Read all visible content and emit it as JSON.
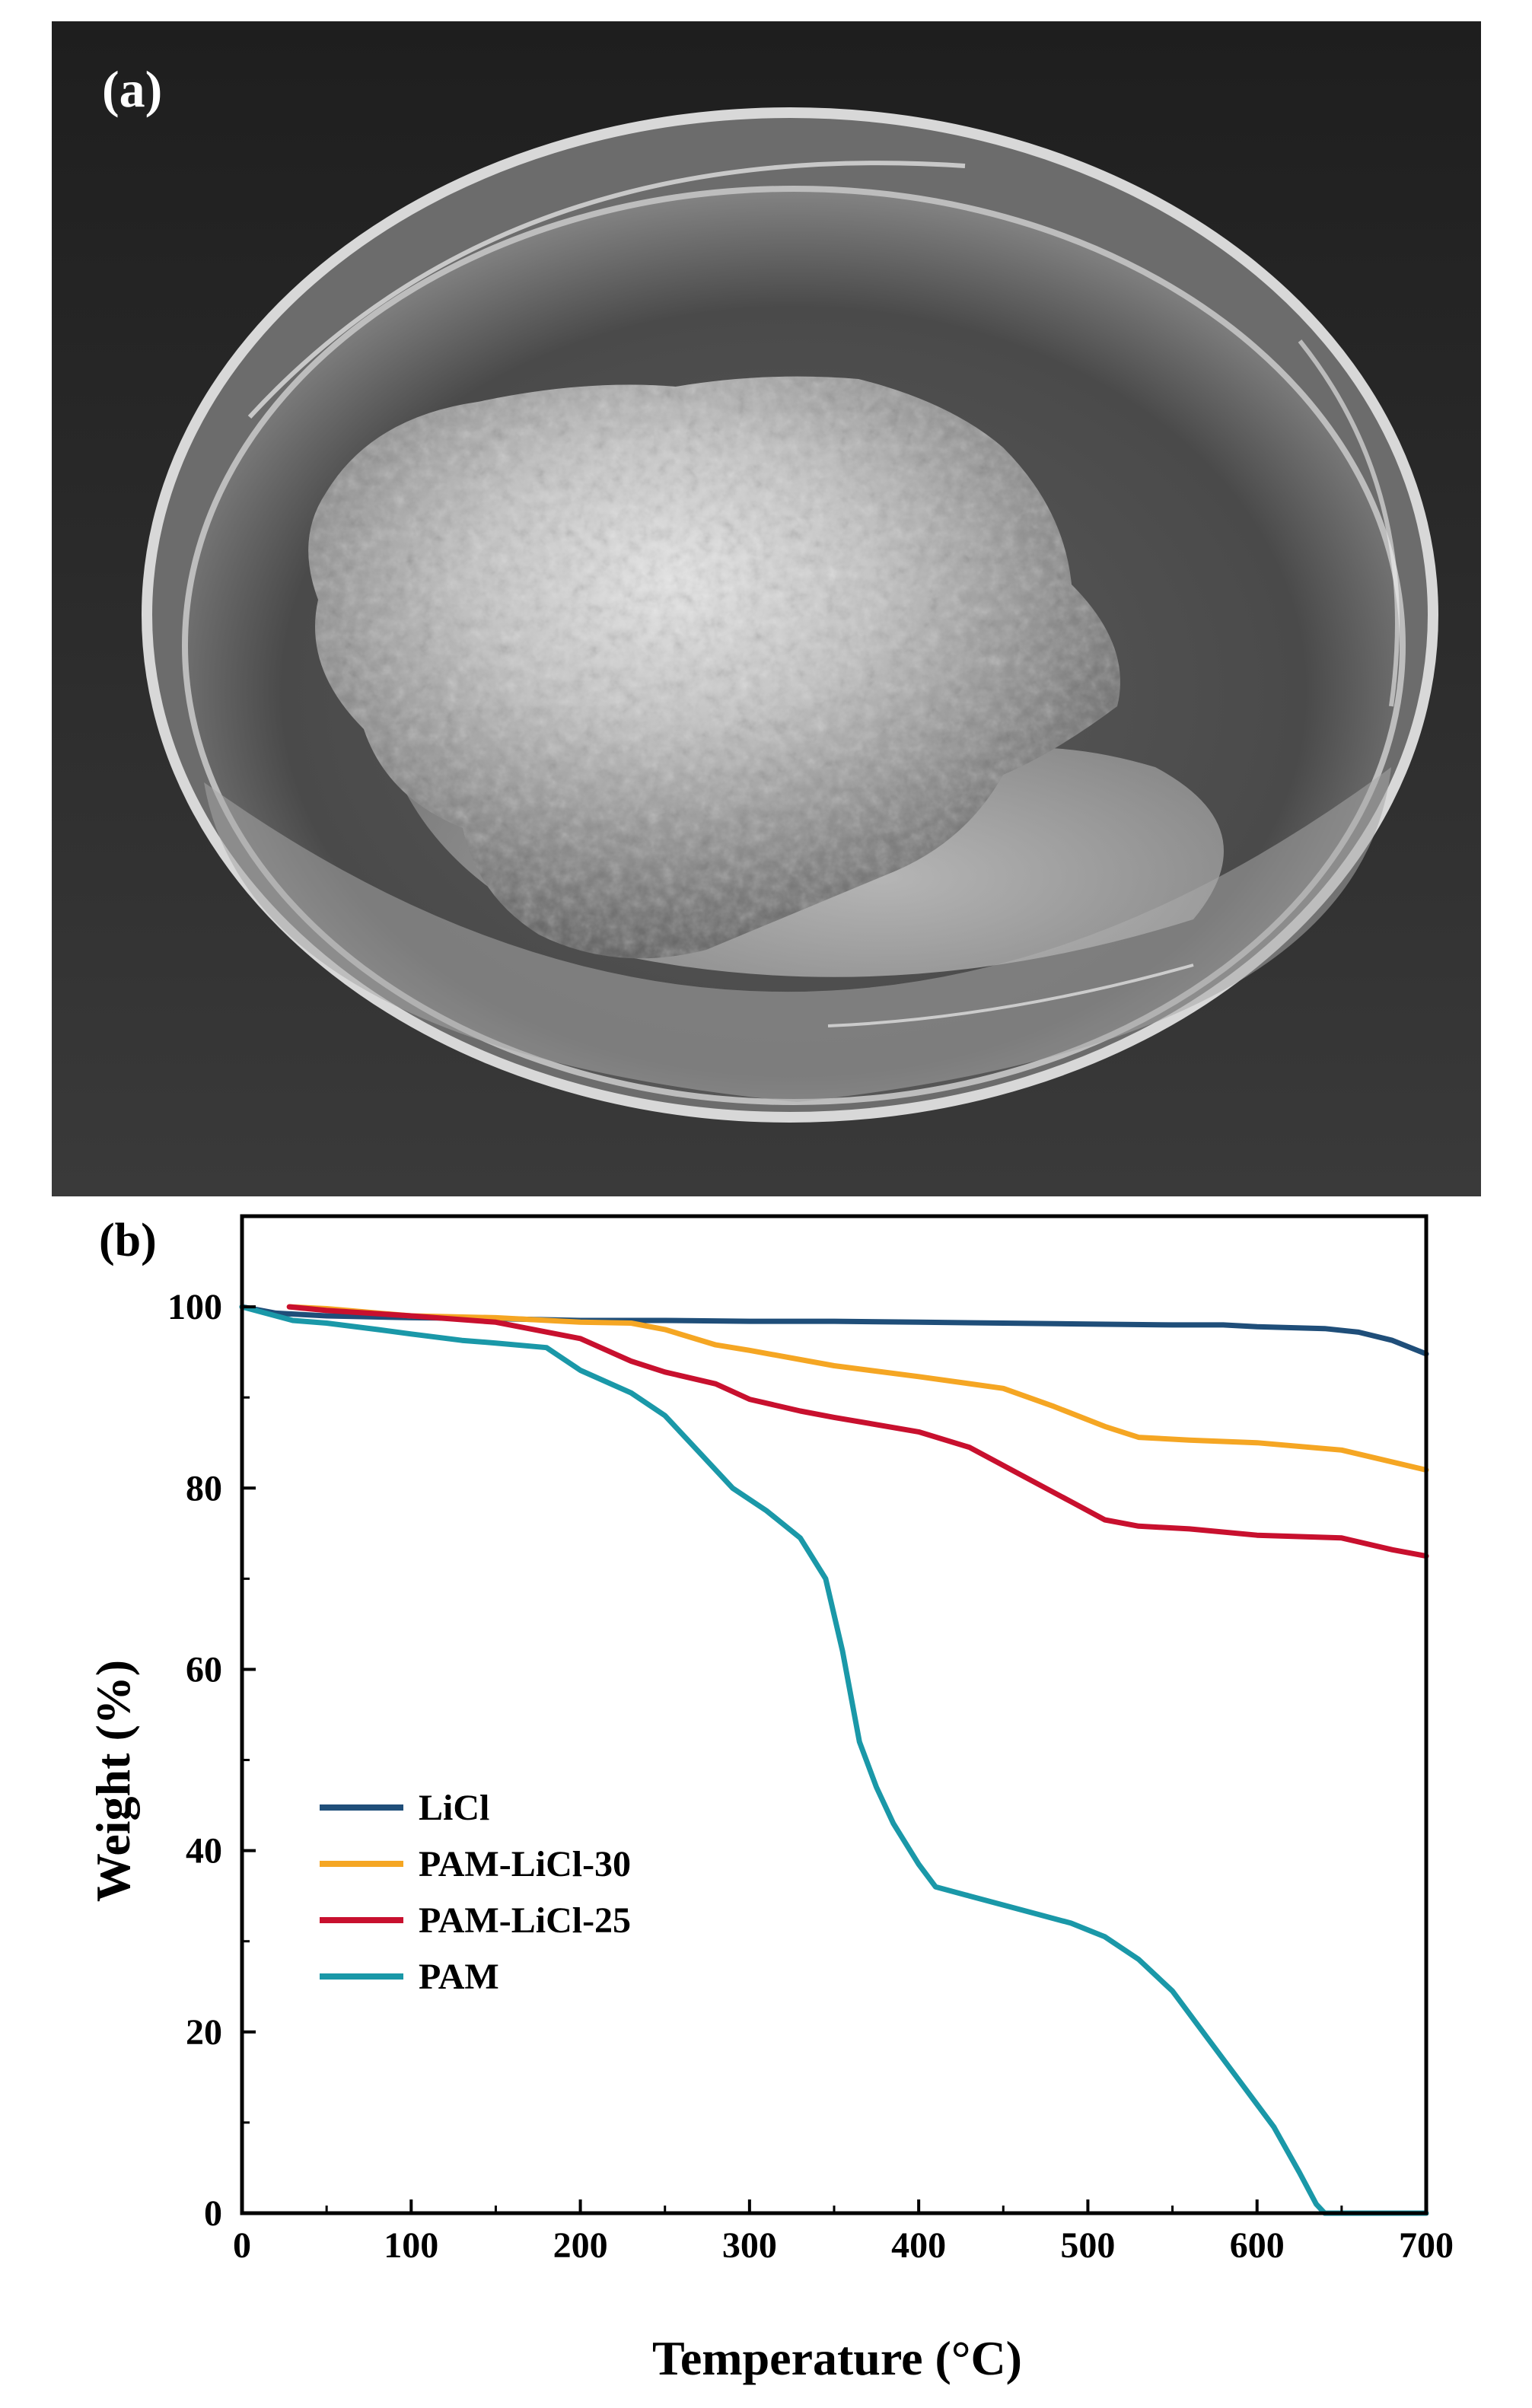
{
  "panels": {
    "a": {
      "label": "(a)"
    },
    "b": {
      "label": "(b)"
    }
  },
  "colors": {
    "LiCl": "#1f4e79",
    "PAM-LiCl-30": "#f5a623",
    "PAM-LiCl-25": "#c8102e",
    "PAM": "#1a98a8"
  },
  "chart_data": {
    "type": "line",
    "title": "",
    "xlabel": "Temperature (°C)",
    "ylabel": "Weight (%)",
    "xlim": [
      0,
      700
    ],
    "ylim": [
      0,
      110
    ],
    "xticks": [
      0,
      100,
      200,
      300,
      400,
      500,
      600,
      700
    ],
    "yticks": [
      0,
      20,
      40,
      60,
      80,
      100
    ],
    "grid": false,
    "legend_position": "center-left",
    "series": [
      {
        "name": "LiCl",
        "x": [
          0,
          20,
          50,
          100,
          150,
          200,
          250,
          300,
          350,
          400,
          450,
          500,
          550,
          580,
          600,
          640,
          660,
          680,
          700
        ],
        "y": [
          100,
          99.3,
          99.0,
          98.8,
          98.7,
          98.5,
          98.5,
          98.4,
          98.4,
          98.3,
          98.2,
          98.1,
          98.0,
          98.0,
          97.8,
          97.6,
          97.2,
          96.3,
          94.8
        ]
      },
      {
        "name": "PAM-LiCl-30",
        "x": [
          28,
          50,
          100,
          150,
          200,
          230,
          250,
          280,
          300,
          350,
          400,
          450,
          480,
          510,
          530,
          560,
          600,
          650,
          700
        ],
        "y": [
          100,
          99.8,
          99.0,
          98.8,
          98.3,
          98.2,
          97.5,
          95.8,
          95.2,
          93.5,
          92.3,
          91.0,
          89.0,
          86.8,
          85.6,
          85.3,
          85.0,
          84.2,
          82.0
        ]
      },
      {
        "name": "PAM-LiCl-25",
        "x": [
          28,
          50,
          100,
          150,
          200,
          230,
          250,
          280,
          300,
          330,
          350,
          400,
          430,
          460,
          490,
          510,
          530,
          560,
          600,
          650,
          680,
          700
        ],
        "y": [
          100,
          99.6,
          99.0,
          98.3,
          96.5,
          94.0,
          92.8,
          91.5,
          89.8,
          88.5,
          87.8,
          86.2,
          84.5,
          81.5,
          78.5,
          76.5,
          75.8,
          75.5,
          74.8,
          74.5,
          73.2,
          72.5
        ]
      },
      {
        "name": "PAM",
        "x": [
          0,
          30,
          50,
          80,
          100,
          130,
          150,
          180,
          200,
          230,
          250,
          270,
          290,
          310,
          330,
          345,
          355,
          365,
          375,
          385,
          400,
          410,
          420,
          430,
          450,
          470,
          490,
          510,
          530,
          550,
          570,
          590,
          610,
          625,
          635,
          640,
          660,
          700
        ],
        "y": [
          100,
          98.5,
          98.2,
          97.5,
          97.0,
          96.3,
          96.0,
          95.5,
          93.0,
          90.5,
          88.0,
          84.0,
          80.0,
          77.5,
          74.5,
          70.0,
          62.0,
          52.0,
          47.0,
          43.0,
          38.5,
          36.0,
          35.5,
          35.0,
          34.0,
          33.0,
          32.0,
          30.5,
          28.0,
          24.5,
          19.5,
          14.5,
          9.5,
          4.5,
          1.0,
          0,
          0,
          0
        ]
      }
    ]
  }
}
